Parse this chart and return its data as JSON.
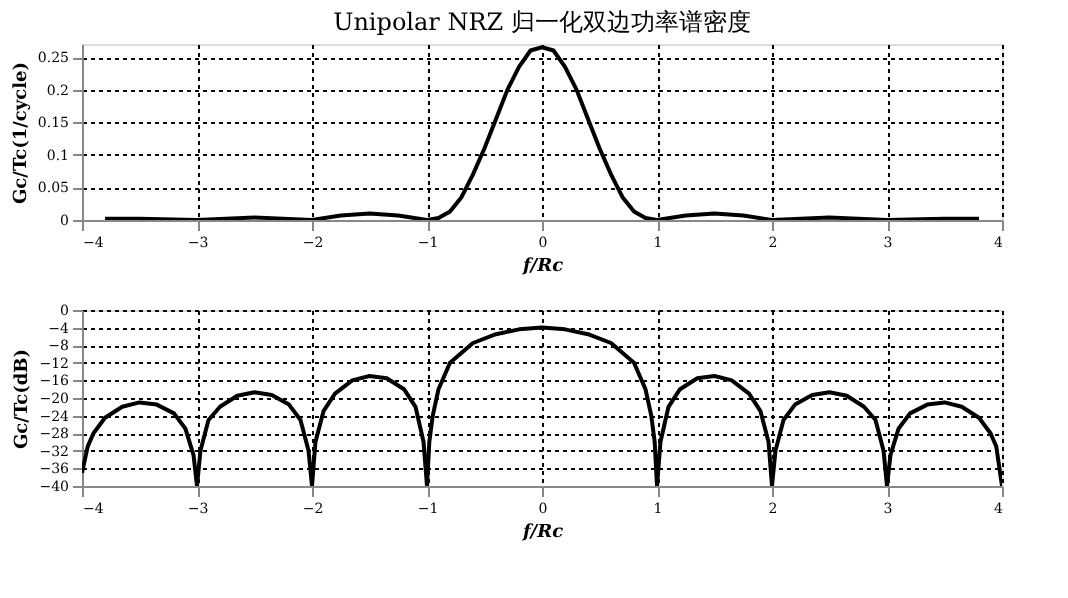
{
  "chart_data": [
    {
      "type": "line",
      "title": "Unipolar NRZ 归一化双边功率谱密度",
      "xlabel": "f/Rc",
      "ylabel": "Gc/Tc(1/cycle)",
      "xlim": [
        -4,
        4
      ],
      "ylim": [
        0,
        0.27
      ],
      "xticks": [
        -4,
        -3,
        -2,
        -1,
        0,
        1,
        2,
        3,
        4
      ],
      "yticks": [
        0,
        0.05,
        0.1,
        0.15,
        0.2,
        0.25
      ],
      "grid": true,
      "line_style": "solid",
      "series": [
        {
          "color": "#000000",
          "x": [
            -3.8,
            -3.5,
            -3,
            -2.5,
            -2,
            -1.75,
            -1.5,
            -1.25,
            -1,
            -0.9,
            -0.8,
            -0.7,
            -0.6,
            -0.5,
            -0.4,
            -0.3,
            -0.2,
            -0.1,
            0,
            0.1,
            0.2,
            0.3,
            0.4,
            0.5,
            0.6,
            0.7,
            0.8,
            0.9,
            1,
            1.25,
            1.5,
            1.75,
            2,
            2.5,
            3,
            3.5,
            3.8
          ],
          "values": [
            0.002,
            0.002,
            0,
            0.004,
            0,
            0.007,
            0.01,
            0.007,
            0,
            0.003,
            0.013,
            0.035,
            0.07,
            0.11,
            0.155,
            0.2,
            0.235,
            0.26,
            0.265,
            0.26,
            0.235,
            0.2,
            0.155,
            0.11,
            0.07,
            0.035,
            0.013,
            0.003,
            0,
            0.007,
            0.01,
            0.007,
            0,
            0.004,
            0,
            0.002,
            0.002
          ]
        }
      ]
    },
    {
      "type": "line",
      "xlabel": "f/Rc",
      "ylabel": "Gc/Tc(dB)",
      "xlim": [
        -4,
        4
      ],
      "ylim": [
        -40,
        0
      ],
      "xticks": [
        -4,
        -3,
        -2,
        -1,
        0,
        1,
        2,
        3,
        4
      ],
      "yticks": [
        -40,
        -36,
        -32,
        -28,
        -24,
        -20,
        -16,
        -12,
        -8,
        -4,
        0
      ],
      "grid": true,
      "line_style": "solid",
      "series": [
        {
          "color": "#000000",
          "x": [
            -4,
            -3.95,
            -3.9,
            -3.8,
            -3.65,
            -3.5,
            -3.35,
            -3.2,
            -3.1,
            -3.03,
            -3,
            -2.97,
            -2.9,
            -2.8,
            -2.65,
            -2.5,
            -2.35,
            -2.2,
            -2.1,
            -2.03,
            -2,
            -1.97,
            -1.9,
            -1.8,
            -1.65,
            -1.5,
            -1.35,
            -1.2,
            -1.1,
            -1.03,
            -1,
            -0.98,
            -0.95,
            -0.9,
            -0.8,
            -0.6,
            -0.4,
            -0.2,
            0,
            0.2,
            0.4,
            0.6,
            0.8,
            0.9,
            0.95,
            0.98,
            1,
            1.03,
            1.1,
            1.2,
            1.35,
            1.5,
            1.65,
            1.8,
            1.9,
            1.97,
            2,
            2.03,
            2.1,
            2.2,
            2.35,
            2.5,
            2.65,
            2.8,
            2.9,
            2.97,
            3,
            3.03,
            3.1,
            3.2,
            3.35,
            3.5,
            3.65,
            3.8,
            3.9,
            3.95,
            4
          ],
          "values": [
            -37,
            -31,
            -28,
            -24.5,
            -22,
            -21,
            -21.5,
            -23.5,
            -27,
            -33,
            -40,
            -32,
            -25,
            -22,
            -19.5,
            -18.7,
            -19.3,
            -21.5,
            -25,
            -32,
            -40,
            -30,
            -23,
            -19,
            -16,
            -15,
            -15.5,
            -18,
            -22,
            -30,
            -40,
            -30,
            -24,
            -18,
            -12,
            -7.5,
            -5.5,
            -4.4,
            -4,
            -4.4,
            -5.5,
            -7.5,
            -12,
            -18,
            -24,
            -30,
            -40,
            -30,
            -22,
            -18,
            -15.5,
            -15,
            -16,
            -19,
            -23,
            -30,
            -40,
            -32,
            -25,
            -21.5,
            -19.3,
            -18.7,
            -19.5,
            -22,
            -25,
            -32,
            -40,
            -33,
            -27,
            -23.5,
            -21.5,
            -21,
            -22,
            -24.5,
            -28,
            -31,
            -40
          ]
        }
      ]
    }
  ]
}
